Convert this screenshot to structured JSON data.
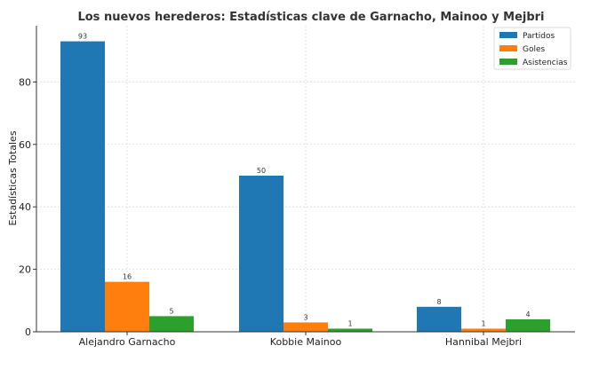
{
  "chart_data": {
    "type": "bar",
    "title": "Los nuevos herederos: Estadísticas clave de Garnacho, Mainoo y Mejbri",
    "xlabel": "",
    "ylabel": "Estadísticas Totales",
    "categories": [
      "Alejandro Garnacho",
      "Kobbie Mainoo",
      "Hannibal Mejbri"
    ],
    "series": [
      {
        "name": "Partidos",
        "color": "#1f77b4",
        "values": [
          93,
          50,
          8
        ]
      },
      {
        "name": "Goles",
        "color": "#ff7f0e",
        "values": [
          16,
          3,
          1
        ]
      },
      {
        "name": "Asistencias",
        "color": "#2ca02c",
        "values": [
          5,
          1,
          4
        ]
      }
    ],
    "ylim": [
      0,
      98
    ],
    "yticks": [
      0,
      20,
      40,
      60,
      80
    ],
    "grid": true,
    "legend_position": "top-right"
  }
}
